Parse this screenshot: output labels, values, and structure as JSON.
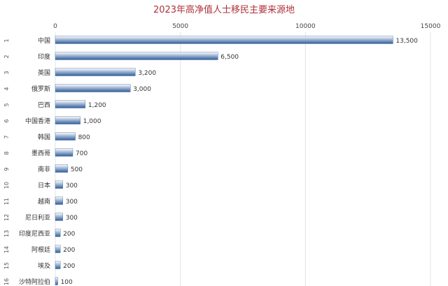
{
  "chart_data": {
    "type": "bar",
    "orientation": "horizontal",
    "title": "2023年高净值人士移民主要来源地",
    "xlabel": "",
    "ylabel": "",
    "xlim": [
      0,
      15000
    ],
    "x_ticks": [
      0,
      5000,
      10000,
      15000
    ],
    "x_tick_labels": [
      "0",
      "5000",
      "10000",
      "15000"
    ],
    "grid": true,
    "legend": "none",
    "ranks": [
      "1",
      "2",
      "3",
      "4",
      "5",
      "6",
      "7",
      "8",
      "9",
      "10",
      "11",
      "12",
      "13",
      "14",
      "15",
      "16"
    ],
    "categories": [
      "中国",
      "印度",
      "英国",
      "俄罗斯",
      "巴西",
      "中国香港",
      "韩国",
      "墨西哥",
      "南非",
      "日本",
      "越南",
      "尼日利亚",
      "印度尼西亚",
      "阿根廷",
      "埃及",
      "沙特阿拉伯"
    ],
    "values": [
      13500,
      6500,
      3200,
      3000,
      1200,
      1000,
      800,
      700,
      500,
      300,
      300,
      300,
      200,
      200,
      200,
      100
    ],
    "value_labels": [
      "13,500",
      "6,500",
      "3,200",
      "3,000",
      "1,200",
      "1,000",
      "800",
      "700",
      "500",
      "300",
      "300",
      "300",
      "200",
      "200",
      "200",
      "100"
    ],
    "colors": {
      "title": "#b0303a",
      "bar_top": "#ffffff",
      "bar_bottom": "#2f5d9a",
      "grid": "#e4e4e4"
    }
  }
}
